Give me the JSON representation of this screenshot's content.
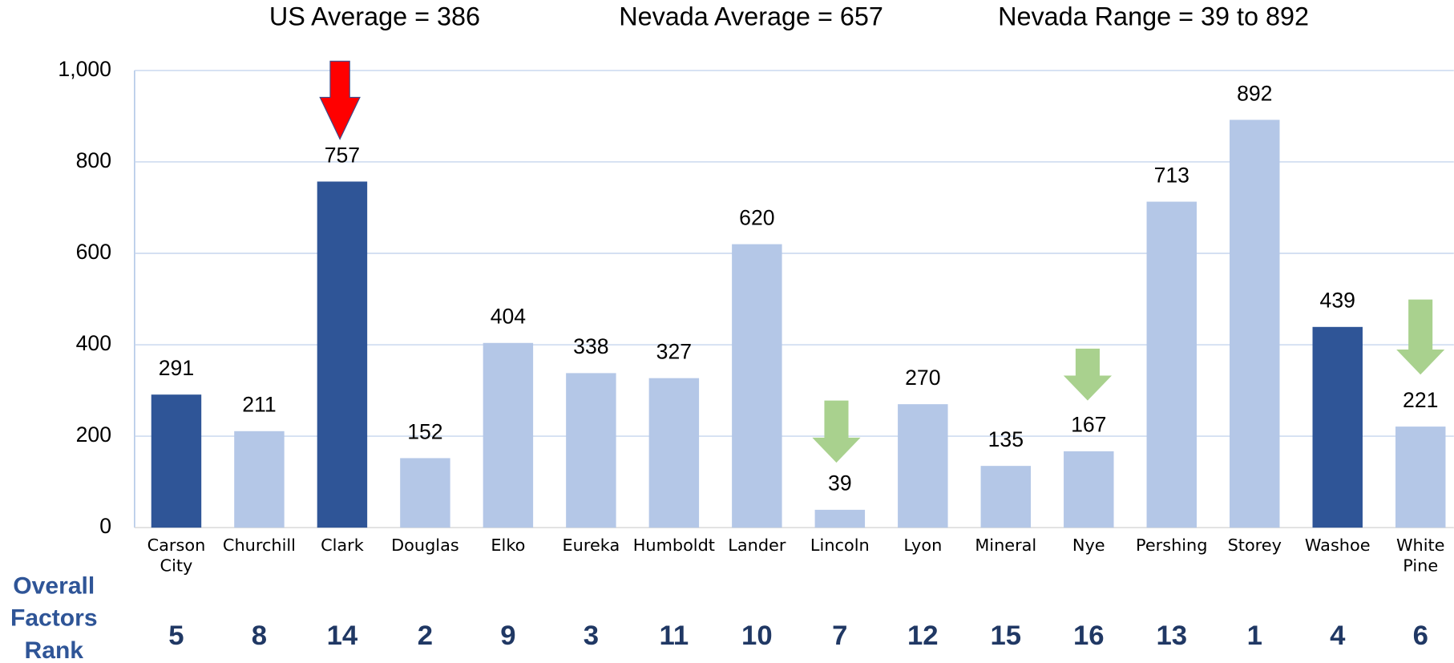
{
  "chart_data": {
    "type": "bar",
    "annotations": [
      "US Average = 386",
      "Nevada Average = 657",
      "Nevada Range = 39 to 892"
    ],
    "categories": [
      "Carson City",
      "Churchill",
      "Clark",
      "Douglas",
      "Elko",
      "Eureka",
      "Humboldt",
      "Lander",
      "Lincoln",
      "Lyon",
      "Mineral",
      "Nye",
      "Pershing",
      "Storey",
      "Washoe",
      "White Pine"
    ],
    "values": [
      291,
      211,
      757,
      152,
      404,
      338,
      327,
      620,
      39,
      270,
      135,
      167,
      713,
      892,
      439,
      221
    ],
    "colors": [
      "#2f5597",
      "#b4c7e7",
      "#2f5597",
      "#b4c7e7",
      "#b4c7e7",
      "#b4c7e7",
      "#b4c7e7",
      "#b4c7e7",
      "#b4c7e7",
      "#b4c7e7",
      "#b4c7e7",
      "#b4c7e7",
      "#b4c7e7",
      "#b4c7e7",
      "#2f5597",
      "#b4c7e7"
    ],
    "ylim": [
      0,
      1000
    ],
    "yticks": [
      0,
      200,
      400,
      600,
      {
        "value": 800,
        "label": "800"
      },
      {
        "value": 1000,
        "label": "1,000"
      }
    ],
    "grid": true,
    "rank_label": "Overall Factors Rank",
    "ranks": [
      5,
      8,
      14,
      2,
      9,
      3,
      11,
      10,
      7,
      12,
      15,
      16,
      13,
      1,
      4,
      6
    ]
  }
}
